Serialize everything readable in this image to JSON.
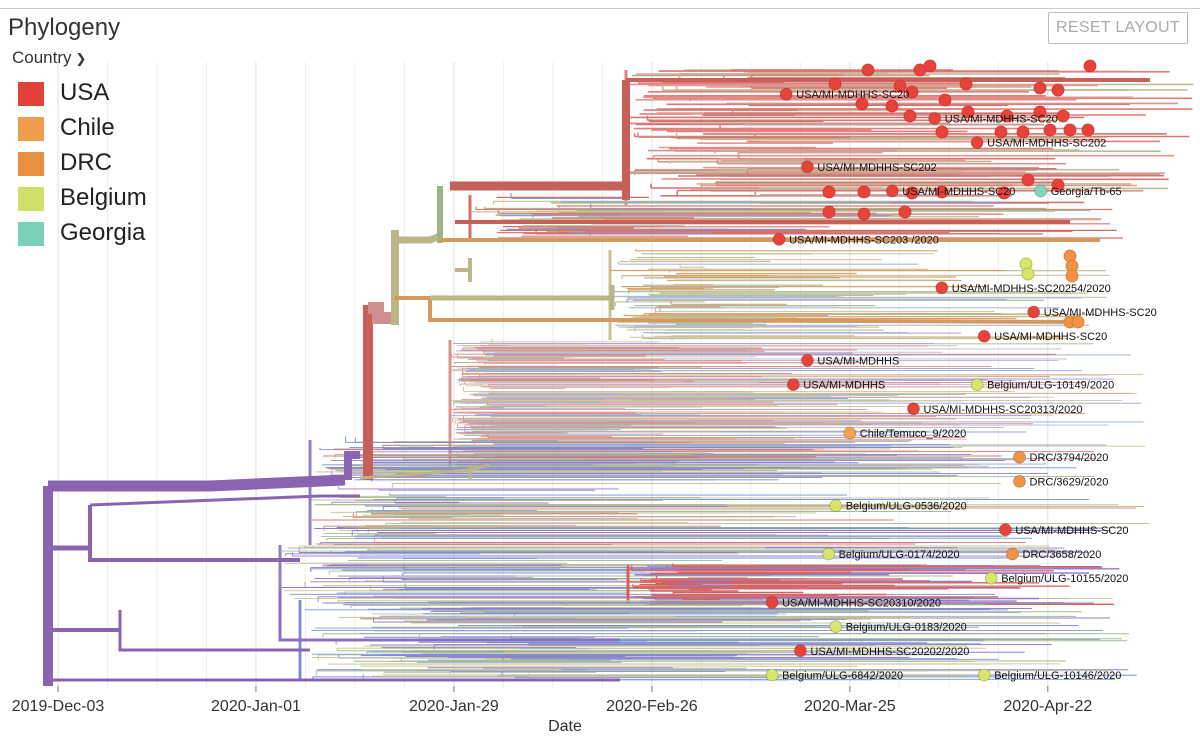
{
  "panel": {
    "title": "Phylogeny",
    "reset_label": "RESET LAYOUT",
    "color_by": "Country"
  },
  "colors": {
    "USA": "#e8433b",
    "Chile": "#f4a24f",
    "DRC": "#f19245",
    "Belgium": "#d6e66a",
    "Georgia": "#7fd6c0",
    "base": "#8a64b0",
    "branchRed": "#c8605a",
    "branchTan": "#bcb686",
    "branchGreen": "#9ab586",
    "branchBlue": "#6d7fd0",
    "branchOrange": "#d39a5f"
  },
  "legend": [
    {
      "label": "USA",
      "color": "#e8433b"
    },
    {
      "label": "Chile",
      "color": "#f4a24f"
    },
    {
      "label": "DRC",
      "color": "#f19245"
    },
    {
      "label": "Belgium",
      "color": "#d6e66a"
    },
    {
      "label": "Georgia",
      "color": "#7fd6c0"
    }
  ],
  "chart_data": {
    "type": "phylogenetic-tree",
    "title": "Phylogeny",
    "xlabel": "Date",
    "ylabel": "",
    "x_ticks": [
      "2019-Dec-03",
      "2020-Jan-01",
      "2020-Jan-29",
      "2020-Feb-26",
      "2020-Mar-25",
      "2020-Apr-22"
    ],
    "x_range_days": [
      -5,
      145
    ],
    "color_by": "Country",
    "tips": [
      {
        "label": "USA/MI-MDHHS-SC20",
        "country": "USA",
        "day": 103,
        "row": 1
      },
      {
        "label": "USA/MI-MDHHS-SC20",
        "country": "USA",
        "day": 124,
        "row": 2
      },
      {
        "label": "USA/MI-MDHHS-SC202",
        "country": "USA",
        "day": 130,
        "row": 3
      },
      {
        "label": "USA/MI-MDHHS-SC202",
        "country": "USA",
        "day": 106,
        "row": 4
      },
      {
        "label": "USA/MI-MDHHS-SC20",
        "country": "USA",
        "day": 118,
        "row": 5
      },
      {
        "label": "Georgia/Tb-65",
        "country": "Georgia",
        "day": 139,
        "row": 5
      },
      {
        "label": "USA/MI-MDHHS-SC203 /2020",
        "country": "USA",
        "day": 102,
        "row": 7
      },
      {
        "label": "USA/MI-MDHHS-SC20254/2020",
        "country": "USA",
        "day": 125,
        "row": 9
      },
      {
        "label": "USA/MI-MDHHS-SC20",
        "country": "USA",
        "day": 138,
        "row": 10
      },
      {
        "label": "USA/MI-MDHHS-SC20",
        "country": "USA",
        "day": 131,
        "row": 11
      },
      {
        "label": "USA/MI-MDHHS",
        "country": "USA",
        "day": 106,
        "row": 12
      },
      {
        "label": "USA/MI-MDHHS",
        "country": "USA",
        "day": 104,
        "row": 13
      },
      {
        "label": "Belgium/ULG-10149/2020",
        "country": "Belgium",
        "day": 130,
        "row": 13
      },
      {
        "label": "USA/MI-MDHHS-SC20313/2020",
        "country": "USA",
        "day": 121,
        "row": 14
      },
      {
        "label": "Chile/Temuco_9/2020",
        "country": "Chile",
        "day": 112,
        "row": 15
      },
      {
        "label": "DRC/3794/2020",
        "country": "DRC",
        "day": 136,
        "row": 16
      },
      {
        "label": "DRC/3629/2020",
        "country": "DRC",
        "day": 136,
        "row": 17
      },
      {
        "label": "Belgium/ULG-0536/2020",
        "country": "Belgium",
        "day": 110,
        "row": 18
      },
      {
        "label": "USA/MI-MDHHS-SC20",
        "country": "USA",
        "day": 134,
        "row": 19
      },
      {
        "label": "Belgium/ULG-0174/2020",
        "country": "Belgium",
        "day": 109,
        "row": 20
      },
      {
        "label": "DRC/3658/2020",
        "country": "DRC",
        "day": 135,
        "row": 20
      },
      {
        "label": "Belgium/ULG-10155/2020",
        "country": "Belgium",
        "day": 132,
        "row": 21
      },
      {
        "label": "USA/MI-MDHHS-SC20310/2020",
        "country": "USA",
        "day": 101,
        "row": 22
      },
      {
        "label": "Belgium/ULG-0183/2020",
        "country": "Belgium",
        "day": 110,
        "row": 23
      },
      {
        "label": "USA/MI-MDHHS-SC20202/2020",
        "country": "USA",
        "day": 105,
        "row": 24
      },
      {
        "label": "Belgium/ULG-6842/2020",
        "country": "Belgium",
        "day": 101,
        "row": 25
      },
      {
        "label": "Belgium/ULG-10146/2020",
        "country": "Belgium",
        "day": 131,
        "row": 25
      }
    ]
  }
}
